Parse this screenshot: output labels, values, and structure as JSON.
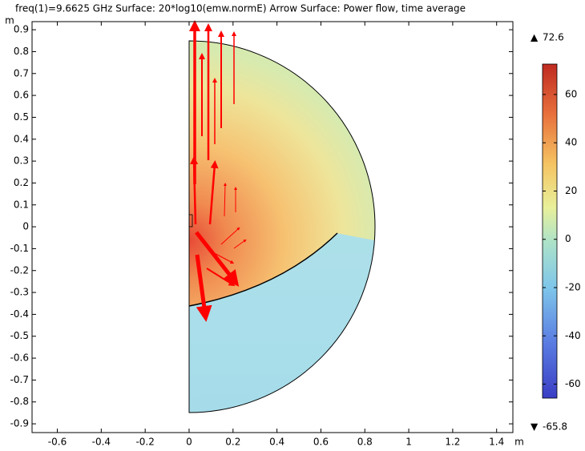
{
  "chart_data": {
    "type": "surface",
    "title": "freq(1)=9.6625 GHz  Surface: 20*log10(emw.normE)  Arrow Surface: Power flow, time average",
    "x_label": "m",
    "y_label": "m",
    "xlim": [
      -0.715,
      1.474
    ],
    "ylim": [
      -0.94,
      0.937
    ],
    "xticks": [
      -0.6,
      -0.4,
      -0.2,
      0,
      0.2,
      0.4,
      0.6,
      0.8,
      1,
      1.2,
      1.4
    ],
    "yticks": [
      0.9,
      0.8,
      0.7,
      0.6,
      0.5,
      0.4,
      0.3,
      0.2,
      0.1,
      0,
      -0.1,
      -0.2,
      -0.3,
      -0.4,
      -0.5,
      -0.6,
      -0.7,
      -0.8,
      -0.9
    ],
    "color_range": {
      "max": 72.6,
      "min": -65.8,
      "ticks": [
        60,
        40,
        20,
        0,
        -20,
        -40,
        -60
      ]
    }
  }
}
